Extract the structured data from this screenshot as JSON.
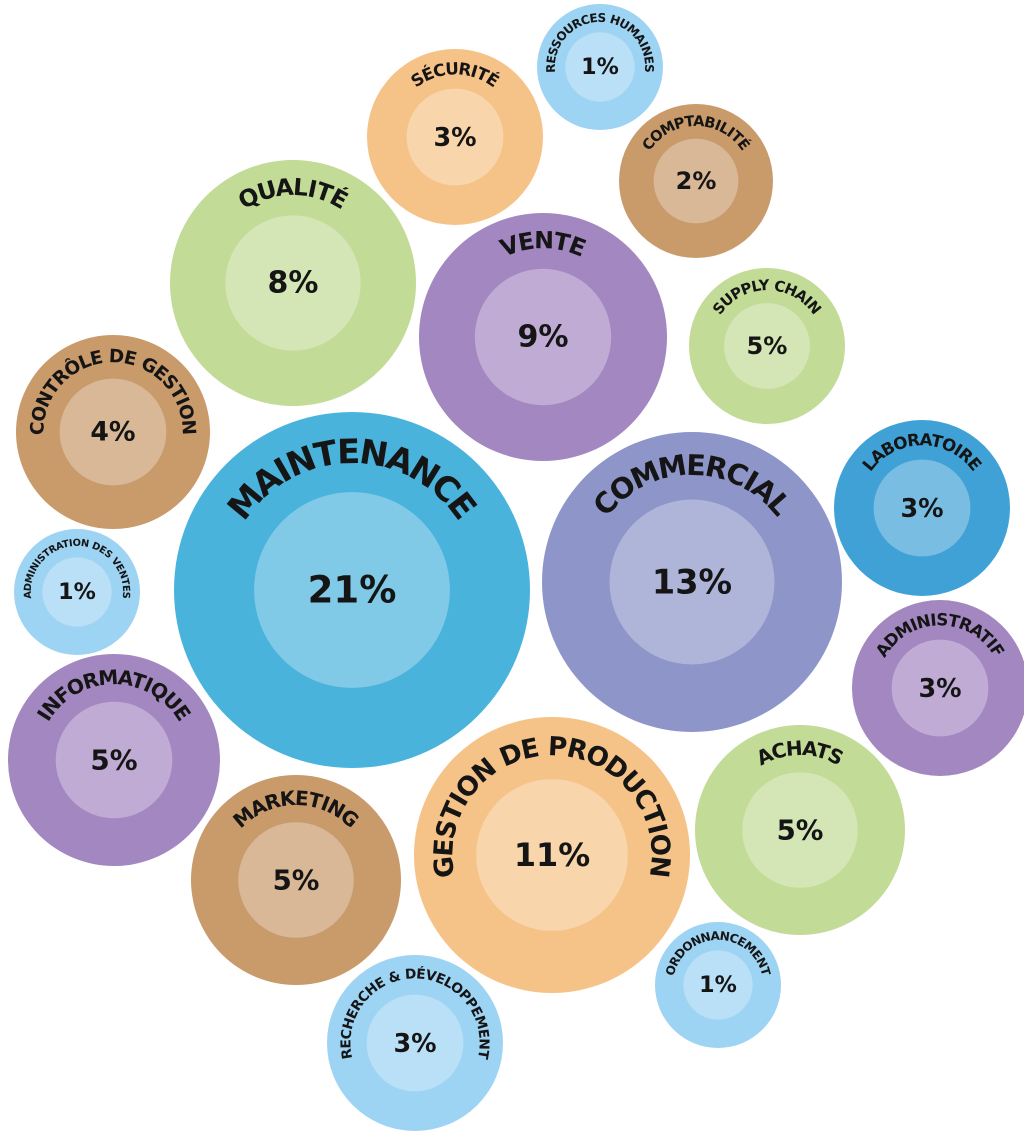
{
  "chart_data": {
    "type": "packed-bubble",
    "categories": [
      "MAINTENANCE",
      "COMMERCIAL",
      "GESTION DE PRODUCTION",
      "VENTE",
      "QUALITÉ",
      "SUPPLY CHAIN",
      "INFORMATIQUE",
      "MARKETING",
      "ACHATS",
      "CONTRÔLE DE GESTION",
      "SÉCURITÉ",
      "LABORATOIRE",
      "ADMINISTRATIF",
      "RECHERCHE & DÉVELOPPEMENT",
      "COMPTABILITÉ",
      "RESSOURCES HUMAINES",
      "ADMINISTRATION DES VENTES",
      "ORDONNANCEMENT"
    ],
    "values": [
      21,
      13,
      11,
      9,
      8,
      5,
      5,
      5,
      5,
      4,
      3,
      3,
      3,
      3,
      2,
      1,
      1,
      1
    ],
    "value_labels": [
      "21%",
      "13%",
      "11%",
      "9%",
      "8%",
      "5%",
      "5%",
      "5%",
      "5%",
      "4%",
      "3%",
      "3%",
      "3%",
      "3%",
      "2%",
      "1%",
      "1%",
      "1%"
    ],
    "colors": [
      "#4ab3dc",
      "#8d95c9",
      "#f5c387",
      "#a387c0",
      "#c2db96",
      "#c2db96",
      "#a387c0",
      "#c99a6a",
      "#c2db96",
      "#c99a6a",
      "#f5c387",
      "#3fa1d6",
      "#a387c0",
      "#9dd3f3",
      "#c99a6a",
      "#9dd3f3",
      "#9dd3f3",
      "#9dd3f3"
    ]
  }
}
